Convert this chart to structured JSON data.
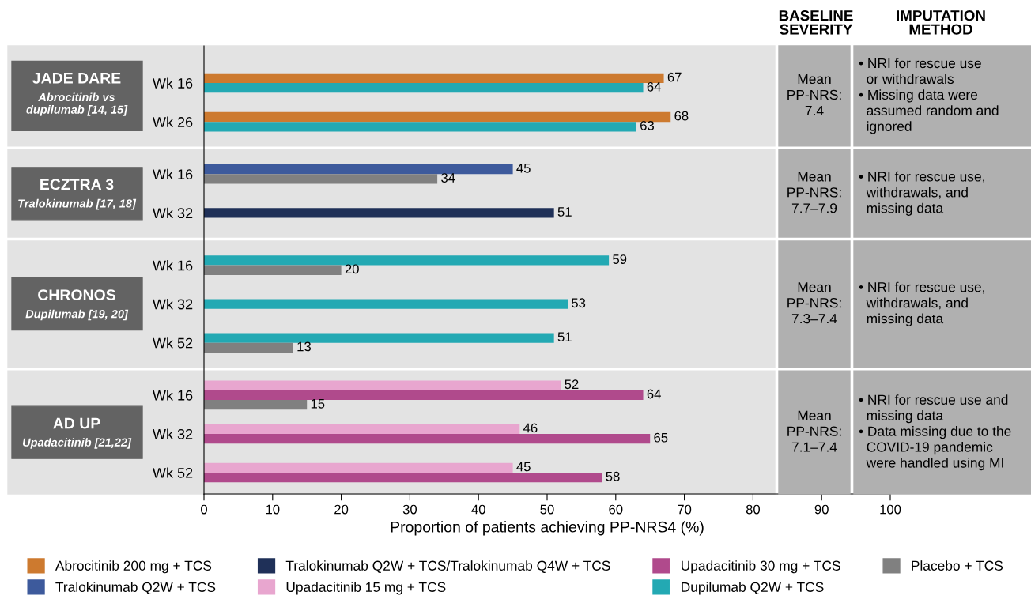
{
  "chart_data": {
    "type": "bar",
    "orientation": "horizontal",
    "xlabel": "Proportion of patients achieving PP-NRS4 (%)",
    "categories": [
      "Wk 16",
      "Wk 26",
      "Wk 16",
      "Wk 32",
      "Wk 16",
      "Wk 32",
      "Wk 52",
      "Wk 16",
      "Wk 32",
      "Wk 52"
    ],
    "series": [
      {
        "name": "Abrocitinib 200 mg + TCS",
        "color": "#cd7a2f",
        "values": [
          67,
          68,
          null,
          null,
          null,
          null,
          null,
          null,
          null,
          null
        ]
      },
      {
        "name": "Tralokinumab Q2W + TCS",
        "color": "#3d5a9c",
        "values": [
          null,
          null,
          45,
          null,
          null,
          null,
          null,
          null,
          null,
          null
        ]
      },
      {
        "name": "Tralokinumab Q2W + TCS/Tralokinumab Q4W + TCS",
        "color": "#1f3058",
        "values": [
          null,
          null,
          null,
          51,
          null,
          null,
          null,
          null,
          null,
          null
        ]
      },
      {
        "name": "Upadacitinib 15 mg + TCS",
        "color": "#e8a6cf",
        "values": [
          null,
          null,
          null,
          null,
          null,
          null,
          null,
          52,
          46,
          45
        ]
      },
      {
        "name": "Upadacitinib 30 mg + TCS",
        "color": "#b04a8c",
        "values": [
          null,
          null,
          null,
          null,
          null,
          null,
          null,
          64,
          65,
          58
        ]
      },
      {
        "name": "Dupilumab Q2W + TCS",
        "color": "#23a9b3",
        "values": [
          64,
          63,
          null,
          null,
          59,
          53,
          51,
          null,
          null,
          null
        ]
      },
      {
        "name": "Placebo + TCS",
        "color": "#808080",
        "values": [
          null,
          null,
          34,
          null,
          20,
          null,
          13,
          15,
          null,
          null
        ]
      }
    ],
    "xlim": [
      0,
      100
    ],
    "xticks": [
      0,
      10,
      20,
      30,
      40,
      50,
      60,
      70,
      80,
      90,
      100
    ],
    "data_labels": true,
    "legend": "bottom",
    "grid": false,
    "annotations": [
      "BASELINE\nSEVERITY",
      "IMPUTATION\nMETHOD",
      "JADE DARE\nAbrocitinib vs\ndupilumab [14, 15]",
      "Mean\nPP-NRS:\n7.4",
      "• NRI for rescue use\n  or withdrawals\n• Missing data were\n  assumed random and\n  ignored",
      "ECZTRA 3\nTralokinumab [17, 18]",
      "Mean\nPP-NRS:\n7.7–7.9",
      "• NRI for rescue use,\n  withdrawals, and\n  missing data",
      "CHRONOS\nDupilumab [19, 20]",
      "Mean\nPP-NRS:\n7.3–7.4",
      "• NRI for rescue use,\n  withdrawals, and\n  missing data",
      "AD UP\nUpadacitinib [21,22]",
      "Mean\nPP-NRS:\n7.1–7.4",
      "• NRI for rescue use and\n  missing data\n• Data missing due to the\n  COVID-19 pandemic\n  were handled using MI"
    ]
  }
}
